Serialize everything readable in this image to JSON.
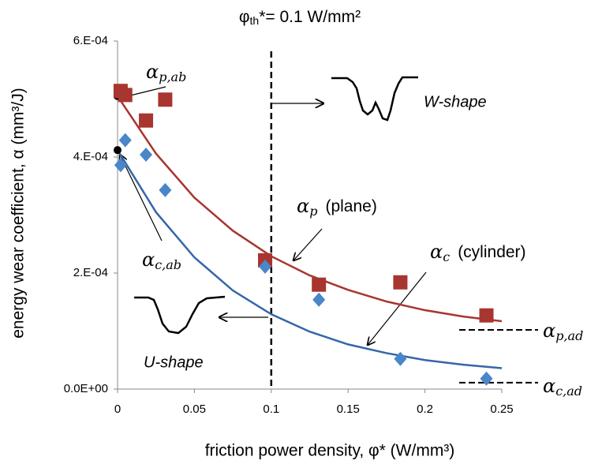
{
  "chart_data": {
    "type": "scatter",
    "title": {
      "base": "φ",
      "sub": "th",
      "rest": "*= 0.1 W/mm²"
    },
    "threshold_x": 0.1,
    "x_label": "friction power density, φ*  (W/mm³)",
    "y_label": "energy wear coefficient, α (mm³/J)",
    "xlim": [
      0,
      0.25
    ],
    "xticks": [
      0,
      0.05,
      0.1,
      0.15,
      0.2,
      0.25
    ],
    "ylim": [
      0,
      0.0006
    ],
    "yticks": [
      {
        "value": 0,
        "label": "0.0E+00"
      },
      {
        "value": 0.0002,
        "label": "2.E-04"
      },
      {
        "value": 0.0004,
        "label": "4.E-04"
      },
      {
        "value": 0.0006,
        "label": "6.E-04"
      }
    ],
    "series": [
      {
        "marker": "square",
        "color": "#a8352f",
        "x": [
          0.002,
          0.005,
          0.0185,
          0.031,
          0.096,
          0.131,
          0.184,
          0.24
        ],
        "values": [
          0.000514,
          0.000507,
          0.000463,
          0.000499,
          0.000222,
          0.00018,
          0.000184,
          0.000127
        ]
      },
      {
        "marker": "diamond",
        "color": "#4a86c8",
        "x": [
          0.002,
          0.005,
          0.0185,
          0.031,
          0.096,
          0.131,
          0.184,
          0.24
        ],
        "values": [
          0.000386,
          0.000429,
          0.000404,
          0.000343,
          0.000211,
          0.000154,
          5.2e-05,
          1.8e-05
        ]
      },
      {
        "marker": "curve",
        "color": "#a8352f",
        "x": [
          0,
          0.025,
          0.05,
          0.075,
          0.1,
          0.125,
          0.15,
          0.175,
          0.2,
          0.225,
          0.25
        ],
        "values": [
          0.000505,
          0.000406,
          0.00033,
          0.000273,
          0.000229,
          0.000196,
          0.000171,
          0.000151,
          0.000136,
          0.000125,
          0.000117
        ]
      },
      {
        "marker": "curve",
        "color": "#3566a8",
        "x": [
          0,
          0.025,
          0.05,
          0.075,
          0.1,
          0.125,
          0.15,
          0.175,
          0.2,
          0.225,
          0.25
        ],
        "values": [
          0.000412,
          0.000305,
          0.000227,
          0.00017,
          0.000129,
          9.9e-05,
          7.7e-05,
          6.2e-05,
          5e-05,
          4.2e-05,
          3.6e-05
        ]
      }
    ],
    "asymptotes": [
      0.000102,
      1.1e-05
    ],
    "annotations": [
      {
        "symbol": "α",
        "sub": "p,ab"
      },
      {
        "symbol": "α",
        "sub": "c,ab"
      },
      {
        "symbol": "α",
        "sub": "p",
        "note": "(plane)"
      },
      {
        "symbol": "α",
        "sub": "c",
        "note": "(cylinder)"
      },
      {
        "symbol": "α",
        "sub": "p,ad"
      },
      {
        "symbol": "α",
        "sub": "c,ad"
      },
      {
        "text": "W-shape"
      },
      {
        "text": "U-shape"
      }
    ]
  }
}
